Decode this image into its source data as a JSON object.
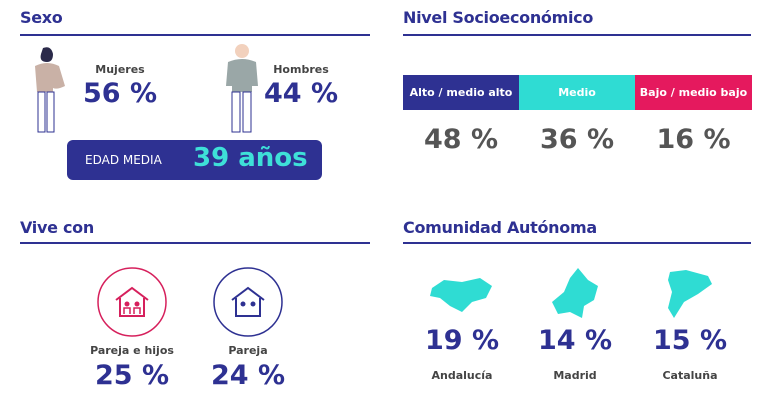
{
  "sexo": {
    "title": "Sexo",
    "groups": [
      {
        "label": "Mujeres",
        "value": "56 %"
      },
      {
        "label": "Hombres",
        "value": "44 %"
      }
    ],
    "edad_media": {
      "label": "EDAD MEDIA",
      "value": "39 años"
    }
  },
  "nivel": {
    "title": "Nivel Socioeconómico",
    "levels": [
      {
        "label": "Alto / medio alto",
        "value": "48 %"
      },
      {
        "label": "Medio",
        "value": "36 %"
      },
      {
        "label": "Bajo / medio bajo",
        "value": "16 %"
      }
    ]
  },
  "vive_con": {
    "title": "Vive con",
    "items": [
      {
        "label": "Pareja e hijos",
        "value": "25 %"
      },
      {
        "label": "Pareja",
        "value": "24 %"
      }
    ]
  },
  "comunidad": {
    "title": "Comunidad Autónoma",
    "items": [
      {
        "label": "Andalucía",
        "value": "19 %"
      },
      {
        "label": "Madrid",
        "value": "14 %"
      },
      {
        "label": "Cataluña",
        "value": "15 %"
      }
    ]
  }
}
